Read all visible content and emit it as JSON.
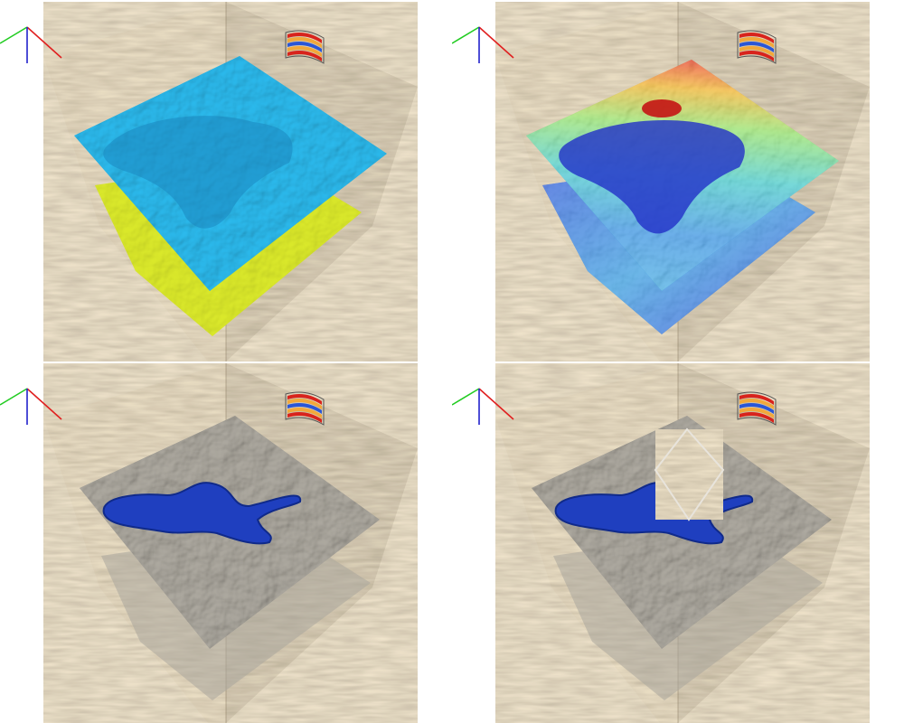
{
  "panels": [
    {
      "id": "p1",
      "view": "horizon-surfaces-solid",
      "upper_surface": "cyan-relief",
      "lower_surface": "yellow-flat",
      "cutout": false
    },
    {
      "id": "p2",
      "view": "horizon-surfaces-colormap",
      "upper_surface": "rainbow-attribute",
      "lower_surface": "rainbow-attribute",
      "cutout": false
    },
    {
      "id": "p3",
      "view": "horizon-slices-seismic",
      "upper_surface": "seismic-gray-with-blue-body",
      "lower_surface": "seismic-gray-translucent",
      "cutout": false
    },
    {
      "id": "p4",
      "view": "horizon-slices-seismic-cutout",
      "upper_surface": "seismic-gray-with-blue-body",
      "lower_surface": "seismic-gray-translucent",
      "cutout": true
    }
  ],
  "icons": {
    "axes": "xyz-axes-icon",
    "colorbar": "colormap-legend-icon"
  },
  "colors": {
    "axis_x": "#e02020",
    "axis_y": "#22cc22",
    "axis_z": "#2222cc",
    "seismic_base": "#c8b89a",
    "seismic_dark": "#6b5a40",
    "cyan_surface": "#2bb6e8",
    "cyan_dark": "#1a86c0",
    "yellow_surface": "#d8e62a",
    "blue_body": "#1f3fbf",
    "gray_slice": "#a9a59c"
  }
}
